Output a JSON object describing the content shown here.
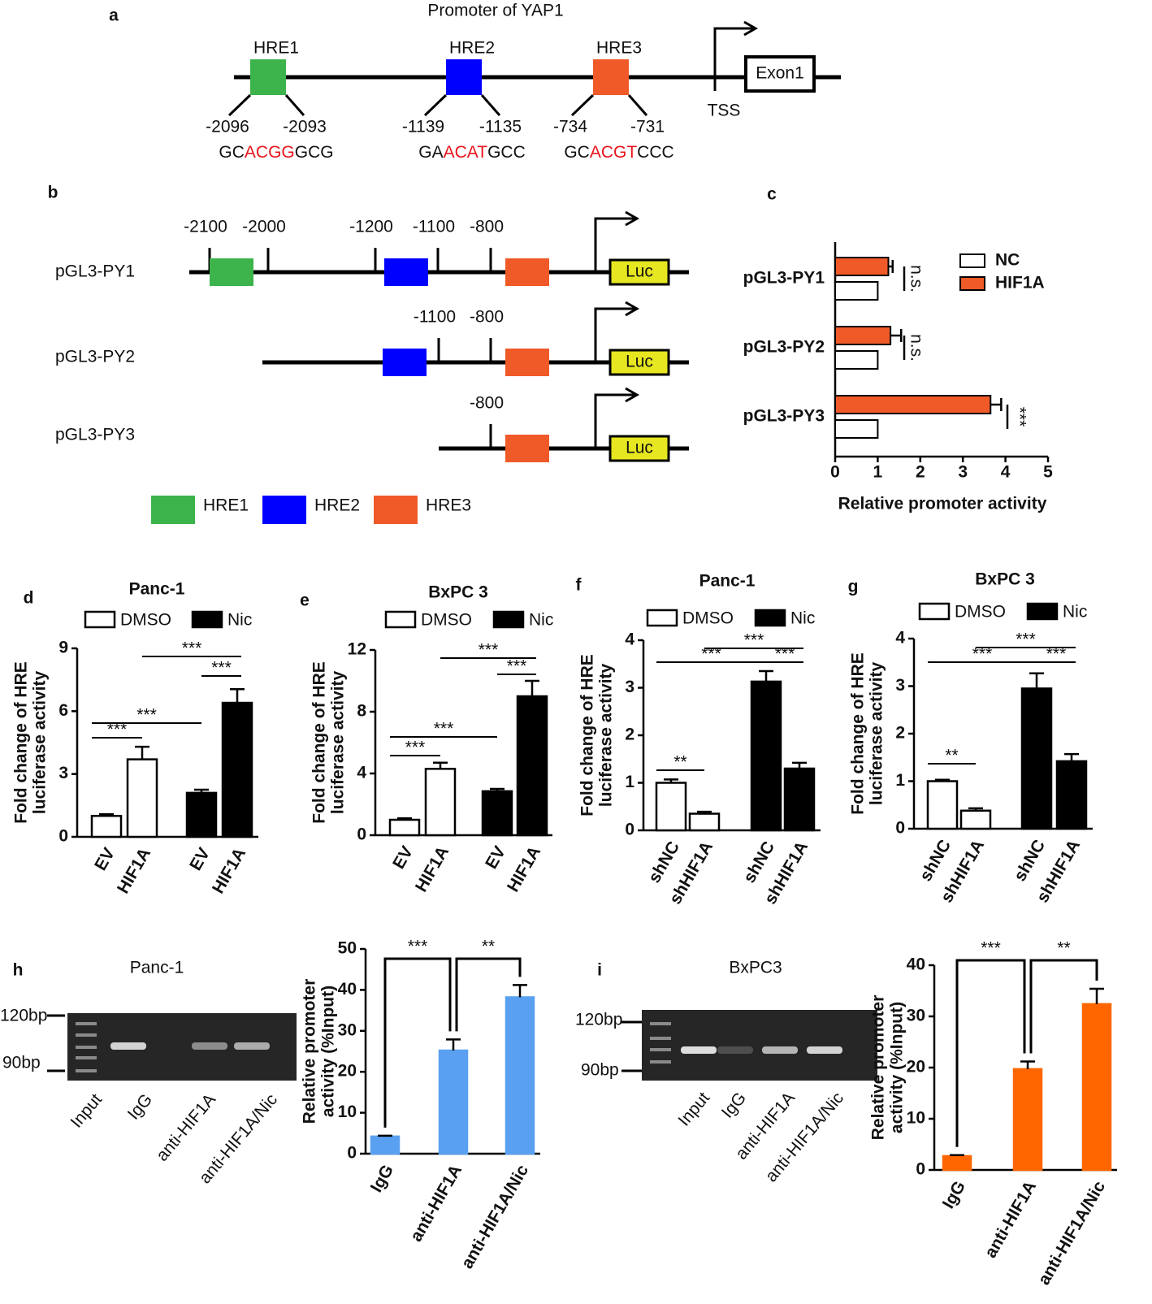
{
  "panel_a": {
    "label": "a",
    "title": "Promoter of YAP1",
    "elements": [
      {
        "name": "HRE1",
        "start": "-2096",
        "end": "-2093",
        "sequence": [
          "GC",
          "ACGG",
          "GCG"
        ]
      },
      {
        "name": "HRE2",
        "start": "-1139",
        "end": "-1135",
        "sequence": [
          "GA",
          "ACAT",
          "GCC"
        ]
      },
      {
        "name": "HRE3",
        "start": "-734",
        "end": "-731",
        "sequence": [
          "GC",
          "ACGT",
          "CCC"
        ]
      }
    ],
    "tss": "TSS",
    "exon": "Exon1"
  },
  "panel_b": {
    "label": "b",
    "constructs": [
      {
        "name": "pGL3-PY1",
        "positions": [
          "-2100",
          "-2000",
          "-1200",
          "-1100",
          "-800"
        ],
        "reporter": "Luc"
      },
      {
        "name": "pGL3-PY2",
        "positions": [
          "-1100",
          "-800"
        ],
        "reporter": "Luc"
      },
      {
        "name": "pGL3-PY3",
        "positions": [
          "-800"
        ],
        "reporter": "Luc"
      }
    ],
    "legend": [
      "HRE1",
      "HRE2",
      "HRE3"
    ]
  },
  "panel_h_gel": {
    "label": "h",
    "title": "Panc-1",
    "markers": [
      "120bp",
      "90bp"
    ],
    "lanes": [
      "Input",
      "IgG",
      "anti-HIF1A",
      "anti-HIF1A/Nic"
    ]
  },
  "panel_i_gel": {
    "label": "i",
    "title": "BxPC3",
    "markers": [
      "120bp",
      "90bp"
    ],
    "lanes": [
      "Input",
      "IgG",
      "anti-HIF1A",
      "anti-HIF1A/Nic"
    ]
  },
  "chart_data": [
    {
      "type": "hbar",
      "panel": "c",
      "categories": [
        "pGL3-PY1",
        "pGL3-PY2",
        "pGL3-PY3"
      ],
      "series": [
        {
          "name": "NC",
          "color": "#ffffff",
          "values": [
            1,
            1,
            1
          ]
        },
        {
          "name": "HIF1A",
          "color": "#f05a28",
          "values": [
            1.25,
            1.3,
            3.65
          ],
          "errors": [
            0.1,
            0.25,
            0.25
          ]
        }
      ],
      "xlabel": "Relative promoter activity",
      "xlim": [
        0,
        5
      ],
      "xticks": [
        0,
        1,
        2,
        3,
        4,
        5
      ],
      "annotations": [
        "n.s.",
        "n.s.",
        "***"
      ]
    },
    {
      "type": "bar",
      "panel": "d",
      "title": "Panc-1",
      "categories": [
        "EV",
        "HIF1A",
        "EV",
        "HIF1A"
      ],
      "series": [
        {
          "name": "DMSO",
          "color": "#ffffff",
          "values": [
            1.0,
            3.7,
            null,
            null
          ],
          "errors": [
            0.08,
            0.6,
            null,
            null
          ]
        },
        {
          "name": "Nic",
          "color": "#000000",
          "values": [
            null,
            null,
            2.1,
            6.4
          ],
          "errors": [
            null,
            null,
            0.15,
            0.65
          ]
        }
      ],
      "ylabel": [
        "Fold change of HRE",
        "luciferase activity"
      ],
      "ylim": [
        0,
        9
      ],
      "yticks": [
        0,
        3,
        6,
        9
      ],
      "annotations": [
        "***",
        "***",
        "***",
        "***"
      ]
    },
    {
      "type": "bar",
      "panel": "e",
      "title": "BxPC 3",
      "categories": [
        "EV",
        "HIF1A",
        "EV",
        "HIF1A"
      ],
      "series": [
        {
          "name": "DMSO",
          "color": "#ffffff",
          "values": [
            1.0,
            4.3,
            null,
            null
          ],
          "errors": [
            0.1,
            0.4,
            null,
            null
          ]
        },
        {
          "name": "Nic",
          "color": "#000000",
          "values": [
            null,
            null,
            2.85,
            9.0
          ],
          "errors": [
            null,
            null,
            0.15,
            1.0
          ]
        }
      ],
      "ylabel": [
        "Fold change of HRE",
        "luciferase activity"
      ],
      "ylim": [
        0,
        12
      ],
      "yticks": [
        0,
        4,
        8,
        12
      ],
      "annotations": [
        "***",
        "***",
        "***",
        "***"
      ]
    },
    {
      "type": "bar",
      "panel": "f",
      "title": "Panc-1",
      "categories": [
        "shNC",
        "shHIF1A",
        "shNC",
        "shHIF1A"
      ],
      "series": [
        {
          "name": "DMSO",
          "color": "#ffffff",
          "values": [
            1.0,
            0.35,
            null,
            null
          ],
          "errors": [
            0.07,
            0.04,
            null,
            null
          ]
        },
        {
          "name": "Nic",
          "color": "#000000",
          "values": [
            null,
            null,
            3.13,
            1.3
          ],
          "errors": [
            null,
            null,
            0.22,
            0.12
          ]
        }
      ],
      "ylabel": [
        "Fold change of HRE",
        "luciferase activity"
      ],
      "ylim": [
        0,
        4
      ],
      "yticks": [
        0,
        1,
        2,
        3,
        4
      ],
      "annotations": [
        "***",
        "***",
        "***",
        "**"
      ]
    },
    {
      "type": "bar",
      "panel": "g",
      "title": "BxPC 3",
      "categories": [
        "shNC",
        "shHIF1A",
        "shNC",
        "shHIF1A"
      ],
      "series": [
        {
          "name": "DMSO",
          "color": "#ffffff",
          "values": [
            1.0,
            0.38,
            null,
            null
          ],
          "errors": [
            0.03,
            0.05,
            null,
            null
          ]
        },
        {
          "name": "Nic",
          "color": "#000000",
          "values": [
            null,
            null,
            2.95,
            1.42
          ],
          "errors": [
            null,
            null,
            0.32,
            0.15
          ]
        }
      ],
      "ylabel": [
        "Fold change of HRE",
        "luciferase activity"
      ],
      "ylim": [
        0,
        4
      ],
      "yticks": [
        0,
        1,
        2,
        3,
        4
      ],
      "annotations": [
        "***",
        "***",
        "***",
        "**"
      ]
    },
    {
      "type": "bar",
      "categories": [
        "IgG",
        "anti-HIF1A",
        "anti-HIF1A/Nic"
      ],
      "color": "#5aa0f0",
      "values": [
        4.2,
        25.2,
        38.2
      ],
      "errors": [
        0.2,
        2.7,
        3.0
      ],
      "ylabel": [
        "Relative promoter",
        "activity (%Input)"
      ],
      "ylim": [
        0,
        50
      ],
      "yticks": [
        0,
        10,
        20,
        30,
        40,
        50
      ],
      "annotations": [
        "***",
        "**"
      ]
    },
    {
      "type": "bar",
      "categories": [
        "IgG",
        "anti-HIF1A",
        "anti-HIF1A/Nic"
      ],
      "color": "#ff6600",
      "values": [
        2.7,
        19.7,
        32.4
      ],
      "errors": [
        0.2,
        1.5,
        3.0
      ],
      "ylabel": [
        "Relative promoter",
        "activity (%Input)"
      ],
      "ylim": [
        0,
        40
      ],
      "yticks": [
        0,
        10,
        20,
        30,
        40
      ],
      "annotations": [
        "***",
        "**"
      ]
    }
  ]
}
